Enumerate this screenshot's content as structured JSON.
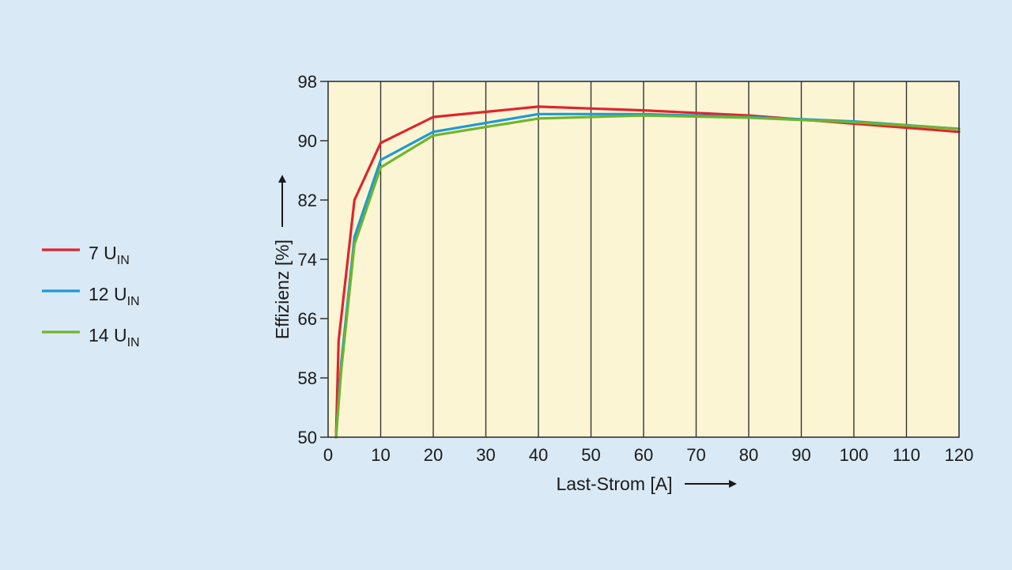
{
  "chart_data": {
    "type": "line",
    "title": "",
    "xlabel": "Last-Strom [A]",
    "ylabel": "Effizienz [%]",
    "xlim": [
      0,
      120
    ],
    "ylim": [
      50,
      98
    ],
    "x_ticks": [
      "0",
      "10",
      "20",
      "30",
      "40",
      "50",
      "60",
      "70",
      "80",
      "90",
      "100",
      "110",
      "120"
    ],
    "y_ticks": [
      "50",
      "58",
      "66",
      "74",
      "82",
      "90",
      "98"
    ],
    "grid": "vertical",
    "legend_position": "left",
    "plot_background": "#fcf5d4",
    "series": [
      {
        "name": "7 U",
        "name_sub": "IN",
        "color": "#e0242c",
        "points": [
          [
            1.5,
            50
          ],
          [
            2,
            63
          ],
          [
            5,
            82
          ],
          [
            10,
            89.7
          ],
          [
            20,
            93.2
          ],
          [
            40,
            94.6
          ],
          [
            60,
            94.1
          ],
          [
            80,
            93.4
          ],
          [
            100,
            92.3
          ],
          [
            120,
            91.2
          ]
        ]
      },
      {
        "name": "12 U",
        "name_sub": "IN",
        "color": "#1d9ad6",
        "points": [
          [
            1.5,
            50
          ],
          [
            2.5,
            60
          ],
          [
            5,
            77
          ],
          [
            10,
            87.4
          ],
          [
            20,
            91.2
          ],
          [
            40,
            93.6
          ],
          [
            60,
            93.6
          ],
          [
            80,
            93.2
          ],
          [
            100,
            92.6
          ],
          [
            120,
            91.6
          ]
        ]
      },
      {
        "name": "14 U",
        "name_sub": "IN",
        "color": "#6fb52c",
        "points": [
          [
            1.5,
            50
          ],
          [
            2.5,
            59
          ],
          [
            5,
            76
          ],
          [
            10,
            86.4
          ],
          [
            20,
            90.7
          ],
          [
            40,
            93.0
          ],
          [
            60,
            93.4
          ],
          [
            80,
            93.1
          ],
          [
            100,
            92.5
          ],
          [
            120,
            91.6
          ]
        ]
      }
    ]
  }
}
